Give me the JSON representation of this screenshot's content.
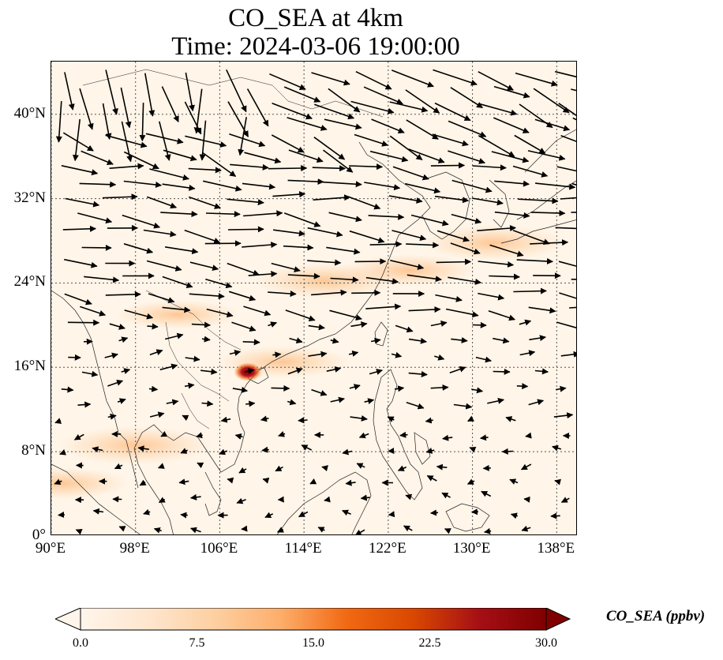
{
  "title": {
    "line1": "CO_SEA at 4km",
    "line2": "Time: 2024-03-06 19:00:00"
  },
  "map": {
    "lon_range": [
      90,
      140
    ],
    "lat_range": [
      0,
      45
    ],
    "lat_ticks": [
      {
        "value": 0,
        "label": "0°"
      },
      {
        "value": 8,
        "label": "8°N"
      },
      {
        "value": 16,
        "label": "16°N"
      },
      {
        "value": 24,
        "label": "24°N"
      },
      {
        "value": 32,
        "label": "32°N"
      },
      {
        "value": 40,
        "label": "40°N"
      }
    ],
    "lon_ticks": [
      {
        "value": 90,
        "label": "90°E"
      },
      {
        "value": 98,
        "label": "98°E"
      },
      {
        "value": 106,
        "label": "106°E"
      },
      {
        "value": 114,
        "label": "114°E"
      },
      {
        "value": 122,
        "label": "122°E"
      },
      {
        "value": 130,
        "label": "130°E"
      },
      {
        "value": 138,
        "label": "138°E"
      }
    ],
    "gridlines": true,
    "background_color": "#fff5e8",
    "hotspot": {
      "lon": 108.6,
      "lat": 15.6,
      "value": 30
    },
    "plumes": [
      {
        "lon": 116,
        "lat": 24.2,
        "value": 5
      },
      {
        "lon": 124,
        "lat": 25.2,
        "value": 4
      },
      {
        "lon": 132,
        "lat": 27.8,
        "value": 5
      },
      {
        "lon": 112,
        "lat": 16.5,
        "value": 4
      },
      {
        "lon": 98,
        "lat": 8.6,
        "value": 6
      },
      {
        "lon": 91,
        "lat": 5.0,
        "value": 4
      },
      {
        "lon": 102,
        "lat": 21,
        "value": 3
      }
    ]
  },
  "colorbar": {
    "label": "CO_SEA (ppbv)",
    "min": 0,
    "max": 30,
    "ticks": [
      "0.0",
      "7.5",
      "15.0",
      "22.5",
      "30.0"
    ],
    "colormap": [
      "#fff5eb",
      "#fee6ce",
      "#fdd0a2",
      "#fdae6b",
      "#f16913",
      "#d94801",
      "#a50f15",
      "#7f0000"
    ],
    "extend": "both"
  }
}
